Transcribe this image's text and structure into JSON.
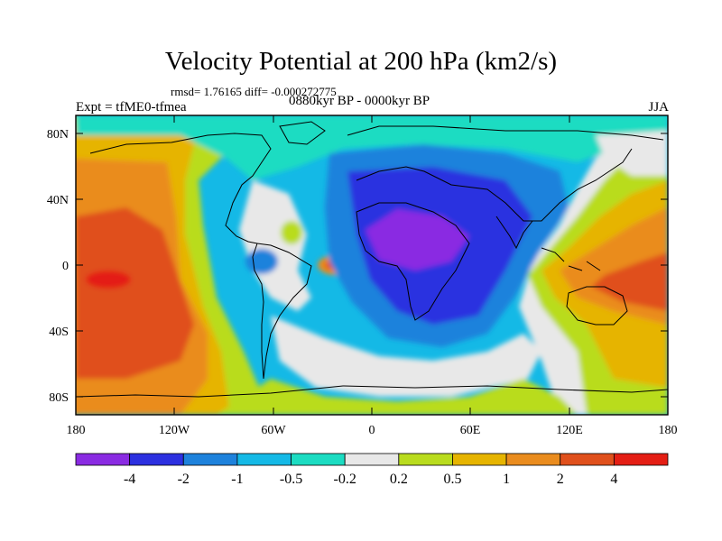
{
  "title": "Velocity Potential at 200 hPa (km2/s)",
  "stats": "rmsd= 1.76165 diff= -0.000272775",
  "experiment": "Expt = tfME0-tfmea",
  "period": "0880kyr BP - 0000kyr BP",
  "season": "JJA",
  "map": {
    "lat_ticks": [
      "80N",
      "40N",
      "0",
      "40S",
      "80S"
    ],
    "lon_ticks": [
      "180",
      "120W",
      "60W",
      "0",
      "60E",
      "120E",
      "180"
    ]
  },
  "colorbar": {
    "labels": [
      "-4",
      "-2",
      "-1",
      "-0.5",
      "-0.2",
      "0.2",
      "0.5",
      "1",
      "2",
      "4"
    ],
    "colors": [
      "#8a2be2",
      "#2c30e0",
      "#1e82dc",
      "#14b9e6",
      "#1cdcc2",
      "#e8e8e8",
      "#b9dc1e",
      "#e6b400",
      "#ea8c1e",
      "#e0501c",
      "#e41e14"
    ]
  }
}
